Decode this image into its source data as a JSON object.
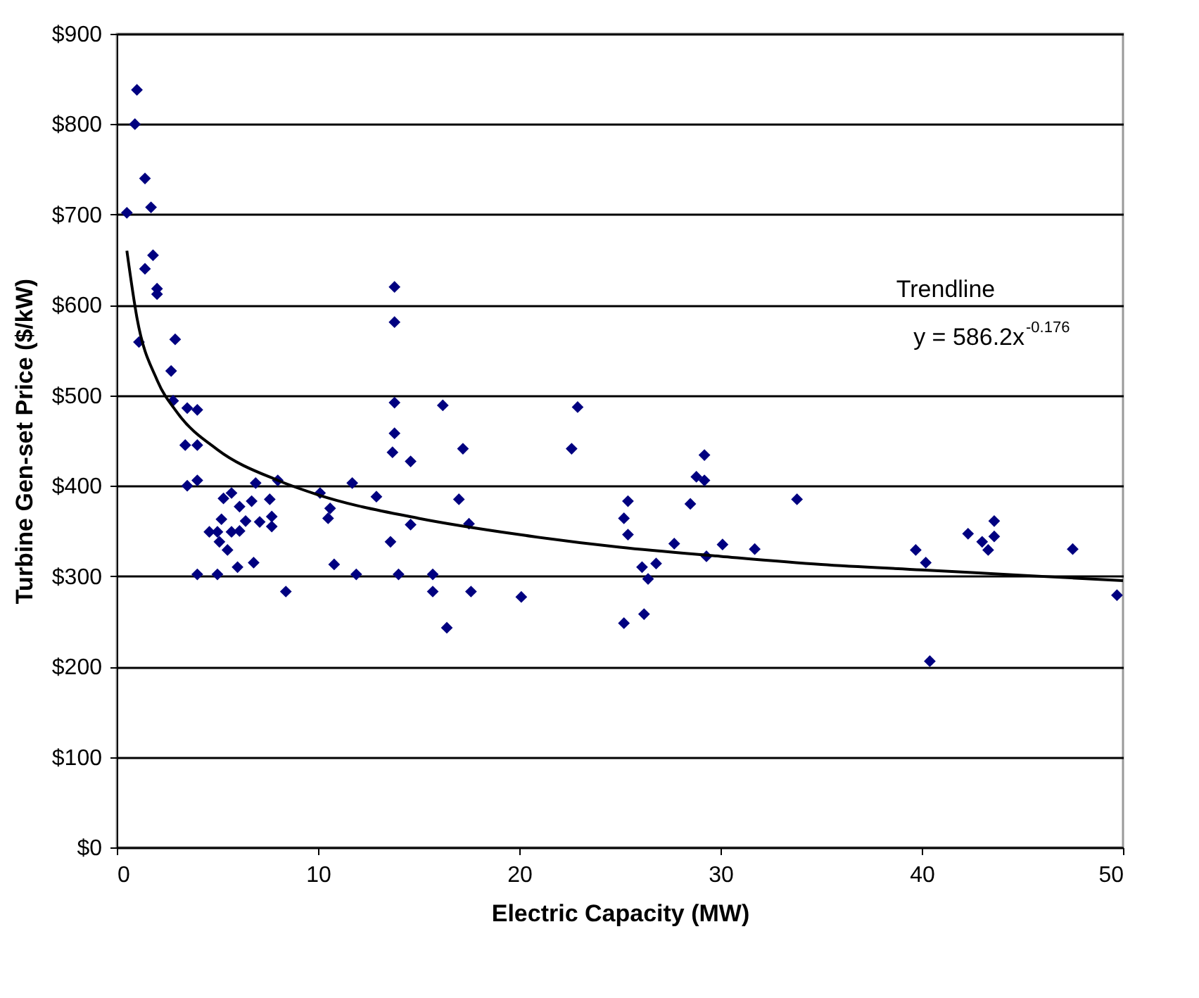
{
  "chart_data": {
    "type": "scatter",
    "xlabel": "Electric Capacity (MW)",
    "ylabel": "Turbine Gen-set Price ($/kW)",
    "xlim": [
      0,
      50
    ],
    "xticks": [
      0,
      10,
      20,
      30,
      40,
      50
    ],
    "ylim": [
      0,
      900
    ],
    "yticks": [
      {
        "value": 0,
        "label": "$0"
      },
      {
        "value": 100,
        "label": "$100"
      },
      {
        "value": 200,
        "label": "$200"
      },
      {
        "value": 300,
        "label": "$300"
      },
      {
        "value": 400,
        "label": "$400"
      },
      {
        "value": 500,
        "label": "$500"
      },
      {
        "value": 600,
        "label": "$600"
      },
      {
        "value": 700,
        "label": "$700"
      },
      {
        "value": 800,
        "label": "$800"
      },
      {
        "value": 900,
        "label": "$900"
      }
    ],
    "grid": "y",
    "legend": false,
    "annotations": [
      "y = 586.2x$^{-0.176}$"
    ],
    "series": [
      {
        "marker": "diamond",
        "color": "#000080",
        "x": [
          0.5,
          1.0,
          0.9,
          1.4,
          1.7,
          1.8,
          1.4,
          2.0,
          2.0,
          1.1,
          2.9,
          2.7,
          2.8,
          3.5,
          4.0,
          3.4,
          4.0,
          3.5,
          4.0,
          4.0,
          4.6,
          5.0,
          5.2,
          5.1,
          5.0,
          5.3,
          5.5,
          5.7,
          6.0,
          6.1,
          6.1,
          5.7,
          6.4,
          6.8,
          6.9,
          6.7,
          7.1,
          7.6,
          7.7,
          7.7,
          8.0,
          8.4,
          10.1,
          10.5,
          10.6,
          10.8,
          11.9,
          11.7,
          12.9,
          13.6,
          13.8,
          13.8,
          13.8,
          13.8,
          13.7,
          14.6,
          14.6,
          14.0,
          16.2,
          17.2,
          17.0,
          17.5,
          17.6,
          15.7,
          15.7,
          16.4,
          20.1,
          22.6,
          22.9,
          25.2,
          25.4,
          25.4,
          25.2,
          26.1,
          26.4,
          26.2,
          26.8,
          27.7,
          28.5,
          28.8,
          29.2,
          29.2,
          29.3,
          30.1,
          31.7,
          33.8,
          39.7,
          40.2,
          40.4,
          42.3,
          43.0,
          43.3,
          43.6,
          43.6,
          47.5,
          49.7
        ],
        "values": [
          702,
          838,
          800,
          740,
          708,
          655,
          640,
          618,
          612,
          559,
          562,
          527,
          494,
          486,
          484,
          445,
          445,
          400,
          406,
          302,
          349,
          349,
          363,
          338,
          302,
          386,
          329,
          349,
          310,
          377,
          350,
          392,
          361,
          315,
          403,
          383,
          360,
          385,
          355,
          366,
          406,
          283,
          392,
          364,
          375,
          313,
          302,
          403,
          388,
          338,
          620,
          581,
          492,
          458,
          437,
          427,
          357,
          302,
          489,
          441,
          385,
          358,
          283,
          302,
          283,
          243,
          277,
          441,
          487,
          364,
          383,
          346,
          248,
          310,
          297,
          258,
          314,
          336,
          380,
          410,
          434,
          406,
          322,
          335,
          330,
          385,
          329,
          315,
          206,
          347,
          338,
          329,
          361,
          344,
          330,
          279
        ]
      },
      {
        "type": "line",
        "name": "Trendline",
        "color": "#000000",
        "line_style": "solid",
        "x": [
          0.5,
          1,
          2,
          3,
          5,
          8,
          10,
          15,
          20,
          25,
          30,
          35,
          40,
          45,
          50
        ],
        "values": [
          660,
          586,
          517,
          481,
          440,
          406,
          390,
          364,
          346,
          332,
          322,
          313,
          307,
          301,
          295
        ]
      }
    ]
  }
}
